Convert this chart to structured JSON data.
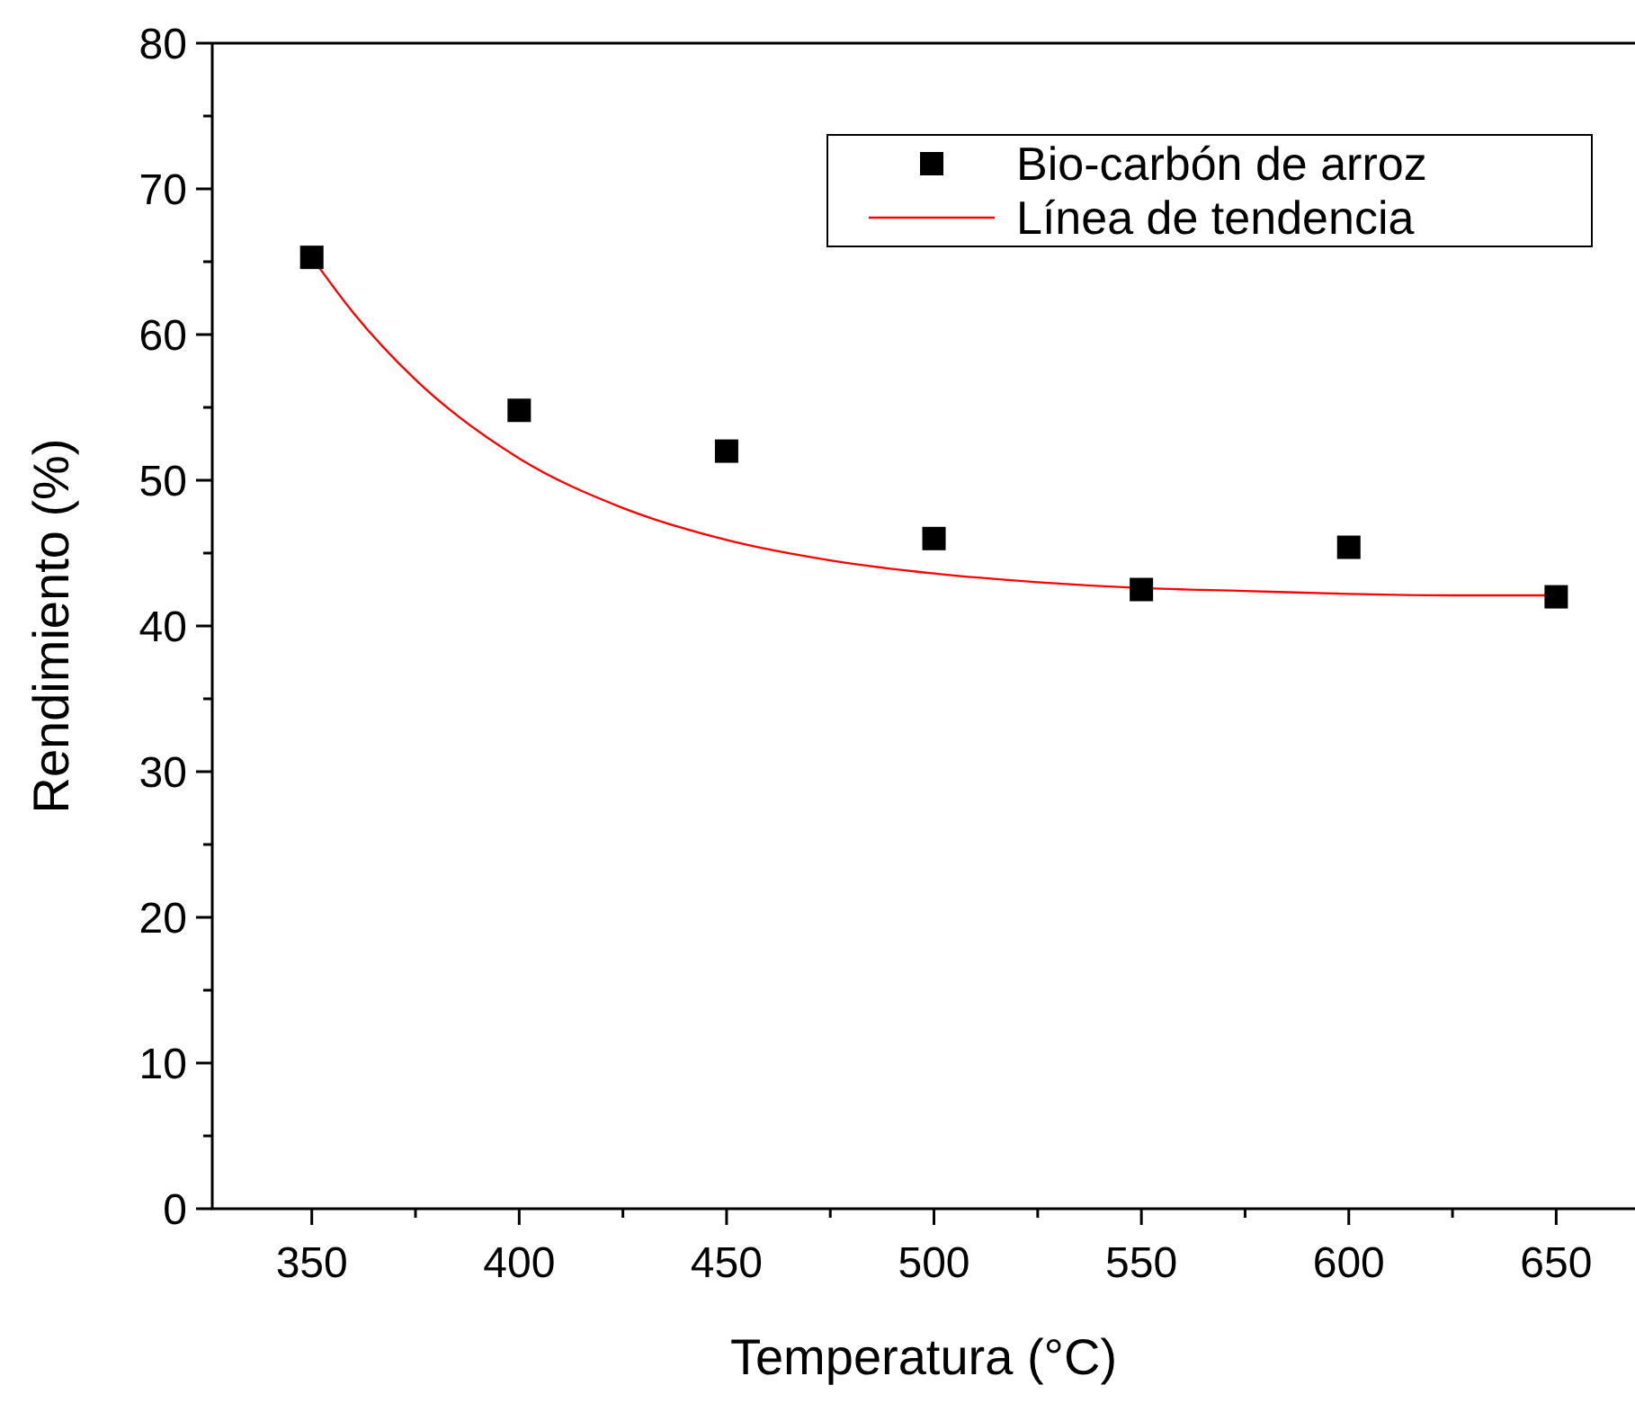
{
  "chart_data": {
    "type": "scatter",
    "xlabel": "Temperatura (°C)",
    "ylabel": "Rendimiento (%)",
    "xlim": [
      326,
      669
    ],
    "ylim": [
      0,
      80
    ],
    "xticks": [
      350,
      {
        "value": 375,
        "label": null
      },
      400,
      {
        "value": 425,
        "label": null
      },
      450,
      {
        "value": 475,
        "label": null
      },
      500,
      {
        "value": 525,
        "label": null
      },
      550,
      {
        "value": 575,
        "label": null
      },
      600,
      {
        "value": 625,
        "label": null
      },
      650
    ],
    "yticks": [
      0,
      {
        "value": 5,
        "label": null
      },
      10,
      {
        "value": 15,
        "label": null
      },
      20,
      {
        "value": 25,
        "label": null
      },
      30,
      {
        "value": 35,
        "label": null
      },
      40,
      {
        "value": 45,
        "label": null
      },
      50,
      {
        "value": 55,
        "label": null
      },
      60,
      {
        "value": 65,
        "label": null
      },
      70,
      {
        "value": 75,
        "label": null
      },
      80
    ],
    "grid": false,
    "legend": "top right",
    "series": [
      {
        "name": "Bio-carbón de arroz",
        "marker": "square",
        "color": "#000000",
        "x": [
          350,
          400,
          450,
          500,
          550,
          600,
          650
        ],
        "values": [
          65.3,
          54.8,
          52.0,
          46.0,
          42.5,
          45.4,
          42.0
        ]
      },
      {
        "name": "Línea de tendencia",
        "type": "line",
        "marker": "none",
        "line_style": "solid",
        "color": "#ff0000",
        "x": [
          350,
          360,
          375,
          400,
          425,
          450,
          475,
          500,
          525,
          550,
          575,
          600,
          625,
          650
        ],
        "values": [
          65.3,
          61.5,
          56.9,
          51.5,
          48.1,
          45.9,
          44.5,
          43.6,
          43.0,
          42.6,
          42.4,
          42.2,
          42.1,
          42.1
        ]
      }
    ]
  }
}
